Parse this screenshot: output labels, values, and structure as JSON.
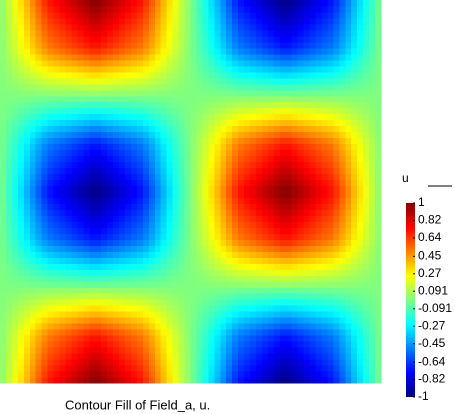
{
  "chart_data": {
    "type": "contour",
    "title": "Contour Fill of Field_a, u.",
    "colorbar_label": "u",
    "x": [
      0,
      0.25,
      0.5,
      0.75,
      1,
      1.25,
      1.5,
      1.75,
      2
    ],
    "y": [
      0,
      0.25,
      0.5,
      0.75,
      1,
      1.25,
      1.5,
      1.75,
      2
    ],
    "xlim": [
      0,
      2
    ],
    "ylim": [
      0,
      2
    ],
    "z": [
      [
        0,
        0.71,
        1,
        0.71,
        0,
        -0.71,
        -1,
        -0.71,
        0
      ],
      [
        0,
        0.5,
        0.71,
        0.5,
        0,
        -0.5,
        -0.71,
        -0.5,
        0
      ],
      [
        0,
        0,
        0,
        0,
        0,
        0,
        0,
        0,
        0
      ],
      [
        0,
        -0.5,
        -0.71,
        -0.5,
        0,
        0.5,
        0.71,
        0.5,
        0
      ],
      [
        0,
        -0.71,
        -1,
        -0.71,
        0,
        0.71,
        1,
        0.71,
        0
      ],
      [
        0,
        -0.5,
        -0.71,
        -0.5,
        0,
        0.5,
        0.71,
        0.5,
        0
      ],
      [
        0,
        0,
        0,
        0,
        0,
        0,
        0,
        0,
        0
      ],
      [
        0,
        0.5,
        0.71,
        0.5,
        0,
        -0.5,
        -0.71,
        -0.5,
        0
      ],
      [
        0,
        0.71,
        1,
        0.71,
        0,
        -0.71,
        -1,
        -0.71,
        0
      ]
    ],
    "clim": [
      -1,
      1
    ],
    "colorbar_ticks": [
      1,
      0.82,
      0.64,
      0.45,
      0.27,
      0.091,
      -0.091,
      -0.27,
      -0.45,
      -0.64,
      -0.82,
      -1
    ]
  }
}
